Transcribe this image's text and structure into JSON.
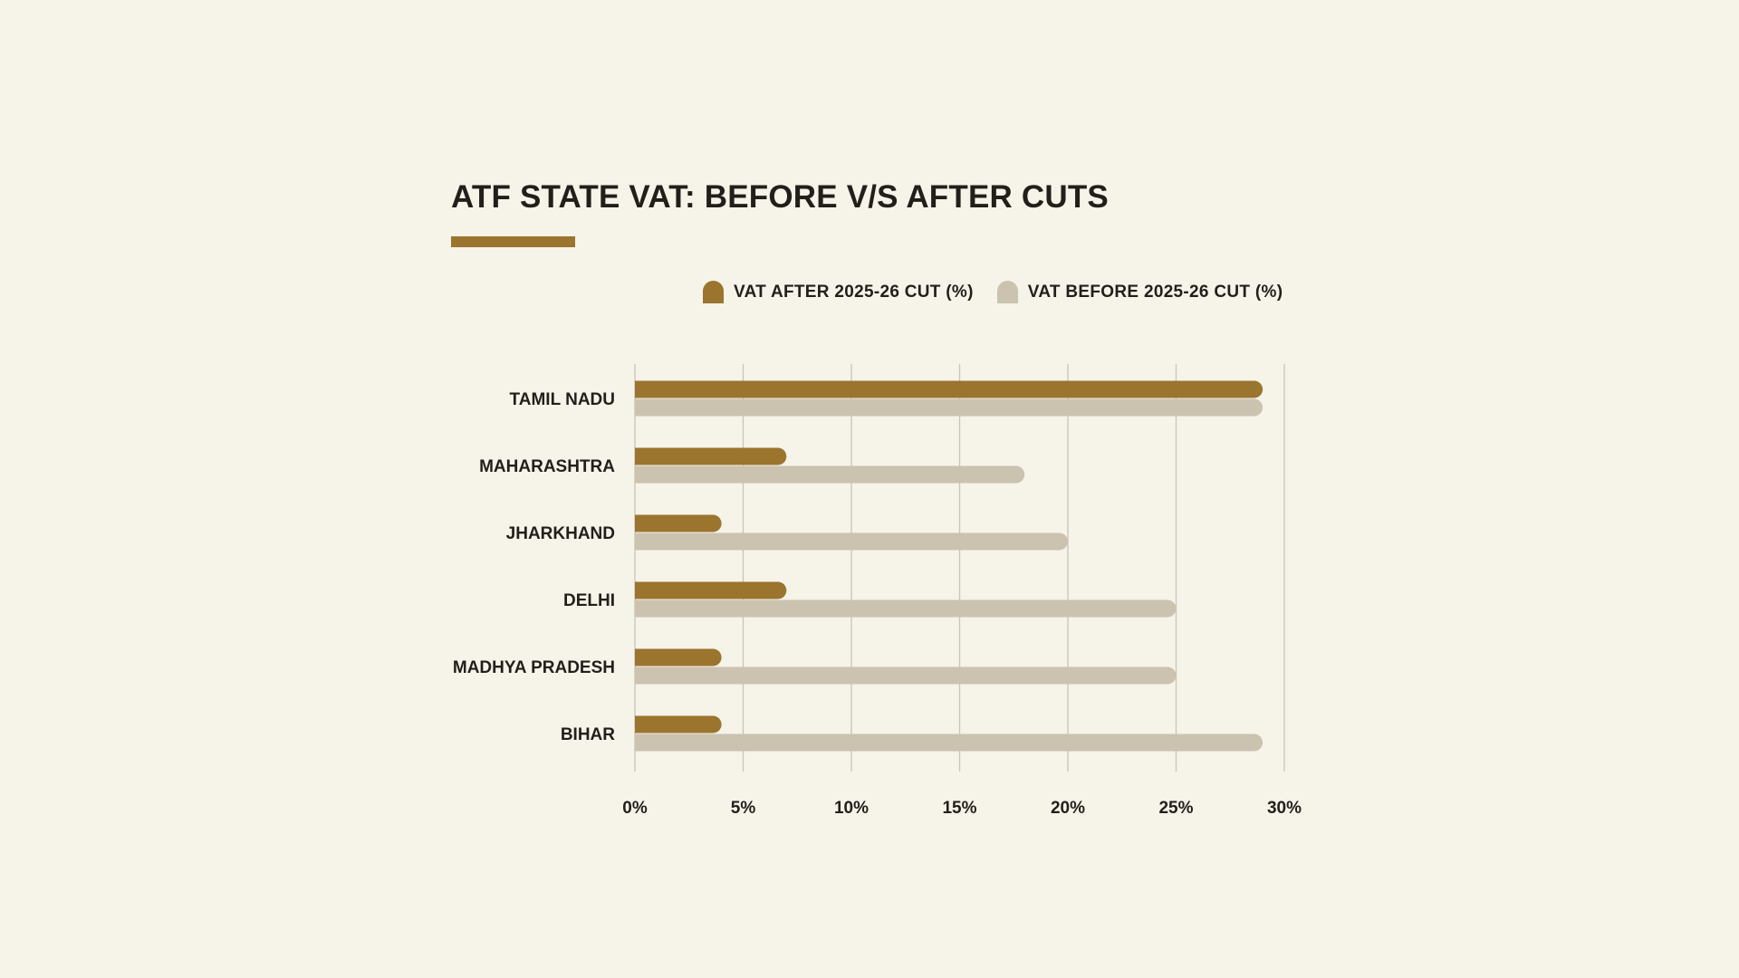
{
  "chart_data": {
    "type": "bar",
    "orientation": "horizontal",
    "title": "ATF STATE VAT: BEFORE V/S AFTER CUTS",
    "categories": [
      "TAMIL NADU",
      "MAHARASHTRA",
      "JHARKHAND",
      "DELHI",
      "MADHYA PRADESH",
      "BIHAR"
    ],
    "series": [
      {
        "name": "VAT AFTER 2025-26 CUT (%)",
        "values": [
          29,
          7,
          4,
          7,
          4,
          4
        ],
        "color": "#9b742e"
      },
      {
        "name": "VAT BEFORE 2025-26 CUT (%)",
        "values": [
          29,
          18,
          20,
          25,
          25,
          29
        ],
        "color": "#cbc2b0"
      }
    ],
    "xlim": [
      0,
      30
    ],
    "xticks": [
      0,
      5,
      10,
      15,
      20,
      25,
      30
    ],
    "xtick_labels": [
      "0%",
      "5%",
      "10%",
      "15%",
      "20%",
      "25%",
      "30%"
    ],
    "grid": true,
    "legend_position": "top"
  },
  "style": {
    "background": "#f6f3e9",
    "accent": "#9b742e",
    "grid_color": "#c9c4b6",
    "text_color": "#221f1b"
  }
}
